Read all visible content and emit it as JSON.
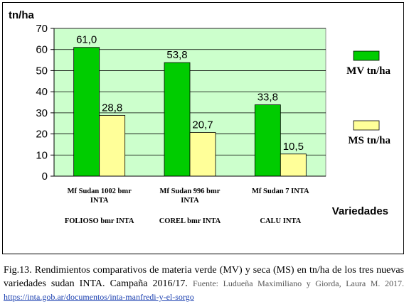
{
  "chart_data": {
    "type": "bar",
    "y_unit": "tn/ha",
    "xlabel": "Variedades",
    "ylim": [
      0,
      70
    ],
    "y_ticks": [
      0,
      10,
      20,
      30,
      40,
      50,
      60,
      70
    ],
    "grid": true,
    "legend_position": "right",
    "plot_background": "#ccffcc",
    "categories": [
      [
        "Mf Sudan 1002 bmr",
        "INTA"
      ],
      [
        "Mf Sudan 996 bmr",
        "INTA"
      ],
      [
        "Mf Sudan 7 INTA"
      ]
    ],
    "sub_labels": [
      "FOLIOSO bmr INTA",
      "COREL bmr INTA",
      "CALU  INTA"
    ],
    "series": [
      {
        "name": "MV tn/ha",
        "color": "#00cc00",
        "values": [
          61.0,
          53.8,
          33.8
        ],
        "labels": [
          "61,0",
          "53,8",
          "33,8"
        ]
      },
      {
        "name": "MS tn/ha",
        "color": "#ffff99",
        "values": [
          28.8,
          20.7,
          10.5
        ],
        "labels": [
          "28,8",
          "20,7",
          "10,5"
        ]
      }
    ]
  },
  "caption": {
    "text": "Fig.13. Rendimientos comparativos de materia verde (MV) y seca (MS) en tn/ha de los tres nuevas variedades sudan INTA. Campaña 2016/17.",
    "source": "Fuente: Ludueña Maximiliano y Giorda, Laura M. 2017.",
    "link": "https://inta.gob.ar/documentos/inta-manfredi-y-el-sorgo"
  }
}
